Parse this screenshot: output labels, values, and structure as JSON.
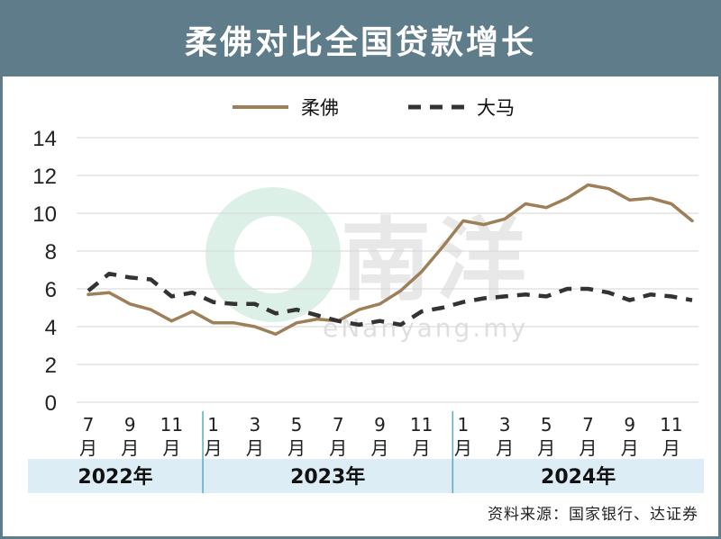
{
  "title": "柔佛对比全国贷款增长",
  "source": "资料来源：国家银行、达证券",
  "watermark": {
    "brand": "南洋",
    "url": "eNanyang.my"
  },
  "colors": {
    "header": "#5f7c8b",
    "johor": "#9e7f57",
    "malaysia": "#333333",
    "year_band": "#dcedf5"
  },
  "chart_data": {
    "type": "line",
    "title": "柔佛对比全国贷款增长",
    "xlabel": "",
    "ylabel": "",
    "ylim": [
      0,
      14
    ],
    "yticks": [
      0,
      2,
      4,
      6,
      8,
      10,
      12,
      14
    ],
    "grid": true,
    "legend_position": "top-center",
    "x": [
      "2022-07",
      "2022-08",
      "2022-09",
      "2022-10",
      "2022-11",
      "2022-12",
      "2023-01",
      "2023-02",
      "2023-03",
      "2023-04",
      "2023-05",
      "2023-06",
      "2023-07",
      "2023-08",
      "2023-09",
      "2023-10",
      "2023-11",
      "2023-12",
      "2024-01",
      "2024-02",
      "2024-03",
      "2024-04",
      "2024-05",
      "2024-06",
      "2024-07",
      "2024-08",
      "2024-09",
      "2024-10",
      "2024-11",
      "2024-12"
    ],
    "x_tick_labels": [
      {
        "index": 0,
        "label": "7\n月"
      },
      {
        "index": 2,
        "label": "9\n月"
      },
      {
        "index": 4,
        "label": "11\n月"
      },
      {
        "index": 6,
        "label": "1\n月"
      },
      {
        "index": 8,
        "label": "3\n月"
      },
      {
        "index": 10,
        "label": "5\n月"
      },
      {
        "index": 12,
        "label": "7\n月"
      },
      {
        "index": 14,
        "label": "9\n月"
      },
      {
        "index": 16,
        "label": "11\n月"
      },
      {
        "index": 18,
        "label": "1\n月"
      },
      {
        "index": 20,
        "label": "3\n月"
      },
      {
        "index": 22,
        "label": "5\n月"
      },
      {
        "index": 24,
        "label": "7\n月"
      },
      {
        "index": 26,
        "label": "9\n月"
      },
      {
        "index": 28,
        "label": "11\n月"
      }
    ],
    "years": [
      {
        "label": "2022年",
        "start": 0,
        "end": 5
      },
      {
        "label": "2023年",
        "start": 6,
        "end": 17
      },
      {
        "label": "2024年",
        "start": 18,
        "end": 29
      }
    ],
    "series": [
      {
        "name": "柔佛",
        "style": "solid",
        "color": "#9e7f57",
        "values": [
          5.7,
          5.8,
          5.2,
          4.9,
          4.3,
          4.8,
          4.2,
          4.2,
          4.0,
          3.6,
          4.2,
          4.4,
          4.3,
          4.9,
          5.2,
          5.9,
          6.9,
          8.2,
          9.6,
          9.4,
          9.7,
          10.5,
          10.3,
          10.8,
          11.5,
          11.3,
          10.7,
          10.8,
          10.5,
          9.6
        ]
      },
      {
        "name": "大马",
        "style": "dashed",
        "color": "#333333",
        "values": [
          5.9,
          6.8,
          6.6,
          6.5,
          5.6,
          5.8,
          5.3,
          5.2,
          5.2,
          4.7,
          4.9,
          4.6,
          4.3,
          4.1,
          4.3,
          4.1,
          4.8,
          5.0,
          5.3,
          5.5,
          5.6,
          5.7,
          5.6,
          6.0,
          6.0,
          5.8,
          5.4,
          5.7,
          5.6,
          5.4
        ]
      }
    ]
  }
}
